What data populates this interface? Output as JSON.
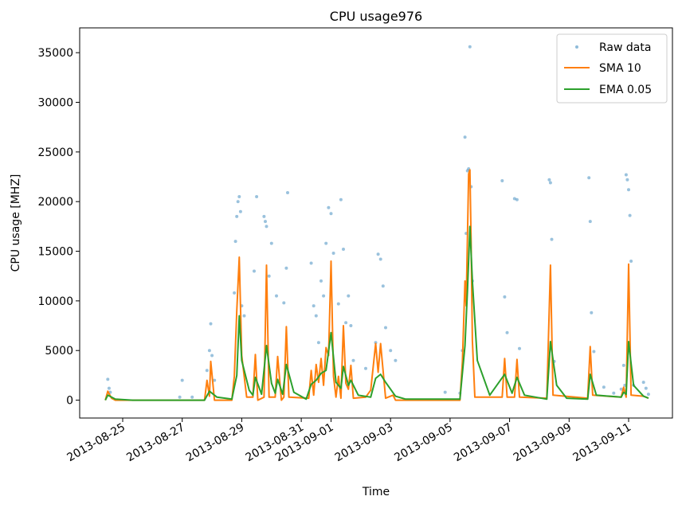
{
  "chart_data": {
    "type": "line",
    "title": "CPU usage976",
    "xlabel": "Time",
    "ylabel": "CPU usage [MHZ]",
    "x_axis": {
      "scale": "date",
      "range": [
        "2013-08-24",
        "2013-09-12"
      ],
      "ticks": [
        "2013-08-25",
        "2013-08-27",
        "2013-08-29",
        "2013-08-31",
        "2013-09-01",
        "2013-09-03",
        "2013-09-05",
        "2013-09-07",
        "2013-09-09",
        "2013-09-11"
      ]
    },
    "y_axis": {
      "ylim": [
        -1800,
        37500
      ],
      "ticks": [
        0,
        5000,
        10000,
        15000,
        20000,
        25000,
        30000,
        35000
      ],
      "tick_labels": [
        "0",
        "5000",
        "10000",
        "15000",
        "20000",
        "25000",
        "30000",
        "35000"
      ]
    },
    "grid": false,
    "legend_position": "top-right",
    "series": [
      {
        "name": "Raw data",
        "style": "points",
        "color": "#1f77b4",
        "points": [
          [
            "2013-08-24T12:00",
            2100
          ],
          [
            "2013-08-24T13:00",
            1200
          ],
          [
            "2013-08-24T14:00",
            800
          ],
          [
            "2013-08-26T22:00",
            300
          ],
          [
            "2013-08-27T00:00",
            2000
          ],
          [
            "2013-08-27T08:00",
            300
          ],
          [
            "2013-08-27T20:00",
            3000
          ],
          [
            "2013-08-27T22:00",
            5000
          ],
          [
            "2013-08-27T23:00",
            7700
          ],
          [
            "2013-08-28T00:00",
            4500
          ],
          [
            "2013-08-28T02:00",
            2000
          ],
          [
            "2013-08-28T18:00",
            10800
          ],
          [
            "2013-08-28T19:00",
            16000
          ],
          [
            "2013-08-28T20:00",
            18500
          ],
          [
            "2013-08-28T21:00",
            20000
          ],
          [
            "2013-08-28T22:00",
            20500
          ],
          [
            "2013-08-28T23:00",
            19000
          ],
          [
            "2013-08-29T00:00",
            9500
          ],
          [
            "2013-08-29T02:00",
            8500
          ],
          [
            "2013-08-29T10:00",
            13000
          ],
          [
            "2013-08-29T12:00",
            20500
          ],
          [
            "2013-08-29T18:00",
            18500
          ],
          [
            "2013-08-29T19:00",
            18000
          ],
          [
            "2013-08-29T20:00",
            17500
          ],
          [
            "2013-08-29T22:00",
            12500
          ],
          [
            "2013-08-30T00:00",
            15800
          ],
          [
            "2013-08-30T04:00",
            10500
          ],
          [
            "2013-08-30T10:00",
            9800
          ],
          [
            "2013-08-30T12:00",
            13300
          ],
          [
            "2013-08-30T13:00",
            20900
          ],
          [
            "2013-08-31T08:00",
            13800
          ],
          [
            "2013-08-31T10:00",
            9500
          ],
          [
            "2013-08-31T12:00",
            8500
          ],
          [
            "2013-08-31T14:00",
            5800
          ],
          [
            "2013-08-31T16:00",
            12000
          ],
          [
            "2013-08-31T18:00",
            10500
          ],
          [
            "2013-08-31T20:00",
            15800
          ],
          [
            "2013-08-31T22:00",
            19400
          ],
          [
            "2013-09-01T00:00",
            18800
          ],
          [
            "2013-09-01T02:00",
            14800
          ],
          [
            "2013-09-01T06:00",
            9700
          ],
          [
            "2013-09-01T08:00",
            20200
          ],
          [
            "2013-09-01T10:00",
            15200
          ],
          [
            "2013-09-01T12:00",
            7800
          ],
          [
            "2013-09-01T14:00",
            10500
          ],
          [
            "2013-09-01T16:00",
            7500
          ],
          [
            "2013-09-01T18:00",
            4000
          ],
          [
            "2013-09-02T04:00",
            3200
          ],
          [
            "2013-09-02T12:00",
            5800
          ],
          [
            "2013-09-02T14:00",
            14700
          ],
          [
            "2013-09-02T16:00",
            14200
          ],
          [
            "2013-09-02T18:00",
            11500
          ],
          [
            "2013-09-02T20:00",
            7300
          ],
          [
            "2013-09-03T00:00",
            5000
          ],
          [
            "2013-09-03T04:00",
            4000
          ],
          [
            "2013-09-04T20:00",
            800
          ],
          [
            "2013-09-05T08:00",
            700
          ],
          [
            "2013-09-05T10:00",
            5000
          ],
          [
            "2013-09-05T12:00",
            26500
          ],
          [
            "2013-09-05T13:00",
            16800
          ],
          [
            "2013-09-05T14:00",
            23100
          ],
          [
            "2013-09-05T15:00",
            23300
          ],
          [
            "2013-09-05T16:00",
            35600
          ],
          [
            "2013-09-05T17:00",
            21500
          ],
          [
            "2013-09-05T18:00",
            12000
          ],
          [
            "2013-09-06T18:00",
            22100
          ],
          [
            "2013-09-06T20:00",
            10400
          ],
          [
            "2013-09-06T22:00",
            6800
          ],
          [
            "2013-09-07T04:00",
            20300
          ],
          [
            "2013-09-07T06:00",
            20200
          ],
          [
            "2013-09-07T08:00",
            5200
          ],
          [
            "2013-09-08T08:00",
            22200
          ],
          [
            "2013-09-08T09:00",
            21900
          ],
          [
            "2013-09-08T10:00",
            16200
          ],
          [
            "2013-09-08T12:00",
            3900
          ],
          [
            "2013-09-09T16:00",
            22400
          ],
          [
            "2013-09-09T17:00",
            18000
          ],
          [
            "2013-09-09T18:00",
            8800
          ],
          [
            "2013-09-09T20:00",
            4900
          ],
          [
            "2013-09-10T04:00",
            1300
          ],
          [
            "2013-09-10T12:00",
            700
          ],
          [
            "2013-09-10T18:00",
            1100
          ],
          [
            "2013-09-10T20:00",
            3500
          ],
          [
            "2013-09-10T21:00",
            1500
          ],
          [
            "2013-09-10T22:00",
            22700
          ],
          [
            "2013-09-10T23:00",
            22200
          ],
          [
            "2013-09-11T00:00",
            21200
          ],
          [
            "2013-09-11T01:00",
            18600
          ],
          [
            "2013-09-11T02:00",
            14000
          ],
          [
            "2013-09-11T04:00",
            1500
          ],
          [
            "2013-09-11T12:00",
            1800
          ],
          [
            "2013-09-11T14:00",
            1200
          ],
          [
            "2013-09-11T16:00",
            600
          ]
        ]
      },
      {
        "name": "SMA 10",
        "style": "line",
        "color": "#ff7f0e",
        "points": [
          [
            "2013-08-24T10:00",
            0
          ],
          [
            "2013-08-24T12:00",
            900
          ],
          [
            "2013-08-24T15:00",
            200
          ],
          [
            "2013-08-24T18:00",
            0
          ],
          [
            "2013-08-27T18:00",
            0
          ],
          [
            "2013-08-27T20:00",
            2000
          ],
          [
            "2013-08-27T22:00",
            400
          ],
          [
            "2013-08-27T23:00",
            3900
          ],
          [
            "2013-08-28T02:00",
            0
          ],
          [
            "2013-08-28T16:00",
            0
          ],
          [
            "2013-08-28T18:00",
            2400
          ],
          [
            "2013-08-28T20:00",
            9000
          ],
          [
            "2013-08-28T22:00",
            14400
          ],
          [
            "2013-08-29T00:00",
            4500
          ],
          [
            "2013-08-29T04:00",
            300
          ],
          [
            "2013-08-29T09:00",
            300
          ],
          [
            "2013-08-29T11:00",
            4600
          ],
          [
            "2013-08-29T13:00",
            0
          ],
          [
            "2013-08-29T18:00",
            300
          ],
          [
            "2013-08-29T20:00",
            13600
          ],
          [
            "2013-08-29T22:00",
            300
          ],
          [
            "2013-08-30T03:00",
            300
          ],
          [
            "2013-08-30T05:00",
            4400
          ],
          [
            "2013-08-30T08:00",
            0
          ],
          [
            "2013-08-30T10:00",
            300
          ],
          [
            "2013-08-30T12:00",
            7400
          ],
          [
            "2013-08-30T14:00",
            300
          ],
          [
            "2013-08-31T06:00",
            200
          ],
          [
            "2013-08-31T08:00",
            3000
          ],
          [
            "2013-08-31T10:00",
            500
          ],
          [
            "2013-08-31T12:00",
            3600
          ],
          [
            "2013-08-31T14:00",
            1800
          ],
          [
            "2013-08-31T16:00",
            4200
          ],
          [
            "2013-08-31T18:00",
            1500
          ],
          [
            "2013-08-31T20:00",
            5300
          ],
          [
            "2013-08-31T22:00",
            4500
          ],
          [
            "2013-09-01T00:00",
            14000
          ],
          [
            "2013-09-01T02:00",
            2400
          ],
          [
            "2013-09-01T04:00",
            300
          ],
          [
            "2013-09-01T06:00",
            2400
          ],
          [
            "2013-09-01T08:00",
            200
          ],
          [
            "2013-09-01T10:00",
            7500
          ],
          [
            "2013-09-01T12:00",
            1700
          ],
          [
            "2013-09-01T14:00",
            1100
          ],
          [
            "2013-09-01T16:00",
            3500
          ],
          [
            "2013-09-01T18:00",
            200
          ],
          [
            "2013-09-02T04:00",
            300
          ],
          [
            "2013-09-02T08:00",
            1000
          ],
          [
            "2013-09-02T12:00",
            5700
          ],
          [
            "2013-09-02T14:00",
            2800
          ],
          [
            "2013-09-02T16:00",
            5700
          ],
          [
            "2013-09-02T18:00",
            3000
          ],
          [
            "2013-09-02T20:00",
            200
          ],
          [
            "2013-09-03T02:00",
            500
          ],
          [
            "2013-09-03T04:00",
            0
          ],
          [
            "2013-09-05T08:00",
            0
          ],
          [
            "2013-09-05T10:00",
            3900
          ],
          [
            "2013-09-05T12:00",
            12000
          ],
          [
            "2013-09-05T13:00",
            9500
          ],
          [
            "2013-09-05T15:00",
            22800
          ],
          [
            "2013-09-05T16:00",
            23200
          ],
          [
            "2013-09-05T17:00",
            16000
          ],
          [
            "2013-09-05T18:00",
            6000
          ],
          [
            "2013-09-05T20:00",
            300
          ],
          [
            "2013-09-06T18:00",
            300
          ],
          [
            "2013-09-06T20:00",
            4200
          ],
          [
            "2013-09-06T22:00",
            300
          ],
          [
            "2013-09-07T04:00",
            300
          ],
          [
            "2013-09-07T06:00",
            4100
          ],
          [
            "2013-09-07T08:00",
            300
          ],
          [
            "2013-09-08T06:00",
            200
          ],
          [
            "2013-09-08T09:00",
            13600
          ],
          [
            "2013-09-08T11:00",
            500
          ],
          [
            "2013-09-09T15:00",
            200
          ],
          [
            "2013-09-09T17:00",
            5400
          ],
          [
            "2013-09-09T19:00",
            500
          ],
          [
            "2013-09-10T18:00",
            300
          ],
          [
            "2013-09-10T20:00",
            1300
          ],
          [
            "2013-09-10T22:00",
            300
          ],
          [
            "2013-09-11T00:00",
            13700
          ],
          [
            "2013-09-11T02:00",
            500
          ],
          [
            "2013-09-11T12:00",
            400
          ],
          [
            "2013-09-11T16:00",
            200
          ]
        ]
      },
      {
        "name": "EMA 0.05",
        "style": "line",
        "color": "#2ca02c",
        "points": [
          [
            "2013-08-24T10:00",
            0
          ],
          [
            "2013-08-24T12:00",
            500
          ],
          [
            "2013-08-24T18:00",
            100
          ],
          [
            "2013-08-25T08:00",
            0
          ],
          [
            "2013-08-27T18:00",
            0
          ],
          [
            "2013-08-27T22:00",
            900
          ],
          [
            "2013-08-28T04:00",
            300
          ],
          [
            "2013-08-28T16:00",
            100
          ],
          [
            "2013-08-28T20:00",
            2500
          ],
          [
            "2013-08-28T22:00",
            8500
          ],
          [
            "2013-08-29T00:00",
            4000
          ],
          [
            "2013-08-29T06:00",
            1000
          ],
          [
            "2013-08-29T09:00",
            500
          ],
          [
            "2013-08-29T11:00",
            2300
          ],
          [
            "2013-08-29T16:00",
            600
          ],
          [
            "2013-08-29T20:00",
            5500
          ],
          [
            "2013-08-30T00:00",
            1700
          ],
          [
            "2013-08-30T03:00",
            700
          ],
          [
            "2013-08-30T05:00",
            2100
          ],
          [
            "2013-08-30T09:00",
            600
          ],
          [
            "2013-08-30T12:00",
            3600
          ],
          [
            "2013-08-30T18:00",
            800
          ],
          [
            "2013-08-31T04:00",
            100
          ],
          [
            "2013-08-31T08:00",
            1600
          ],
          [
            "2013-08-31T12:00",
            2000
          ],
          [
            "2013-08-31T16:00",
            2700
          ],
          [
            "2013-08-31T20:00",
            3000
          ],
          [
            "2013-09-01T00:00",
            6800
          ],
          [
            "2013-09-01T04:00",
            1800
          ],
          [
            "2013-09-01T08:00",
            1200
          ],
          [
            "2013-09-01T10:00",
            3400
          ],
          [
            "2013-09-01T14:00",
            1500
          ],
          [
            "2013-09-01T16:00",
            2000
          ],
          [
            "2013-09-01T22:00",
            500
          ],
          [
            "2013-09-02T08:00",
            300
          ],
          [
            "2013-09-02T12:00",
            2200
          ],
          [
            "2013-09-02T16:00",
            2600
          ],
          [
            "2013-09-02T20:00",
            1800
          ],
          [
            "2013-09-03T04:00",
            400
          ],
          [
            "2013-09-03T12:00",
            100
          ],
          [
            "2013-09-05T08:00",
            100
          ],
          [
            "2013-09-05T12:00",
            5500
          ],
          [
            "2013-09-05T14:00",
            11000
          ],
          [
            "2013-09-05T16:00",
            17500
          ],
          [
            "2013-09-05T18:00",
            12000
          ],
          [
            "2013-09-05T22:00",
            4000
          ],
          [
            "2013-09-06T08:00",
            500
          ],
          [
            "2013-09-06T20:00",
            2600
          ],
          [
            "2013-09-07T02:00",
            700
          ],
          [
            "2013-09-07T06:00",
            2300
          ],
          [
            "2013-09-07T12:00",
            500
          ],
          [
            "2013-09-08T06:00",
            100
          ],
          [
            "2013-09-08T09:00",
            5900
          ],
          [
            "2013-09-08T14:00",
            1500
          ],
          [
            "2013-09-08T22:00",
            200
          ],
          [
            "2013-09-09T15:00",
            100
          ],
          [
            "2013-09-09T17:00",
            2600
          ],
          [
            "2013-09-09T22:00",
            500
          ],
          [
            "2013-09-10T18:00",
            300
          ],
          [
            "2013-09-10T20:00",
            800
          ],
          [
            "2013-09-10T22:00",
            600
          ],
          [
            "2013-09-11T00:00",
            5900
          ],
          [
            "2013-09-11T04:00",
            1500
          ],
          [
            "2013-09-11T12:00",
            400
          ],
          [
            "2013-09-11T16:00",
            200
          ]
        ]
      }
    ]
  }
}
